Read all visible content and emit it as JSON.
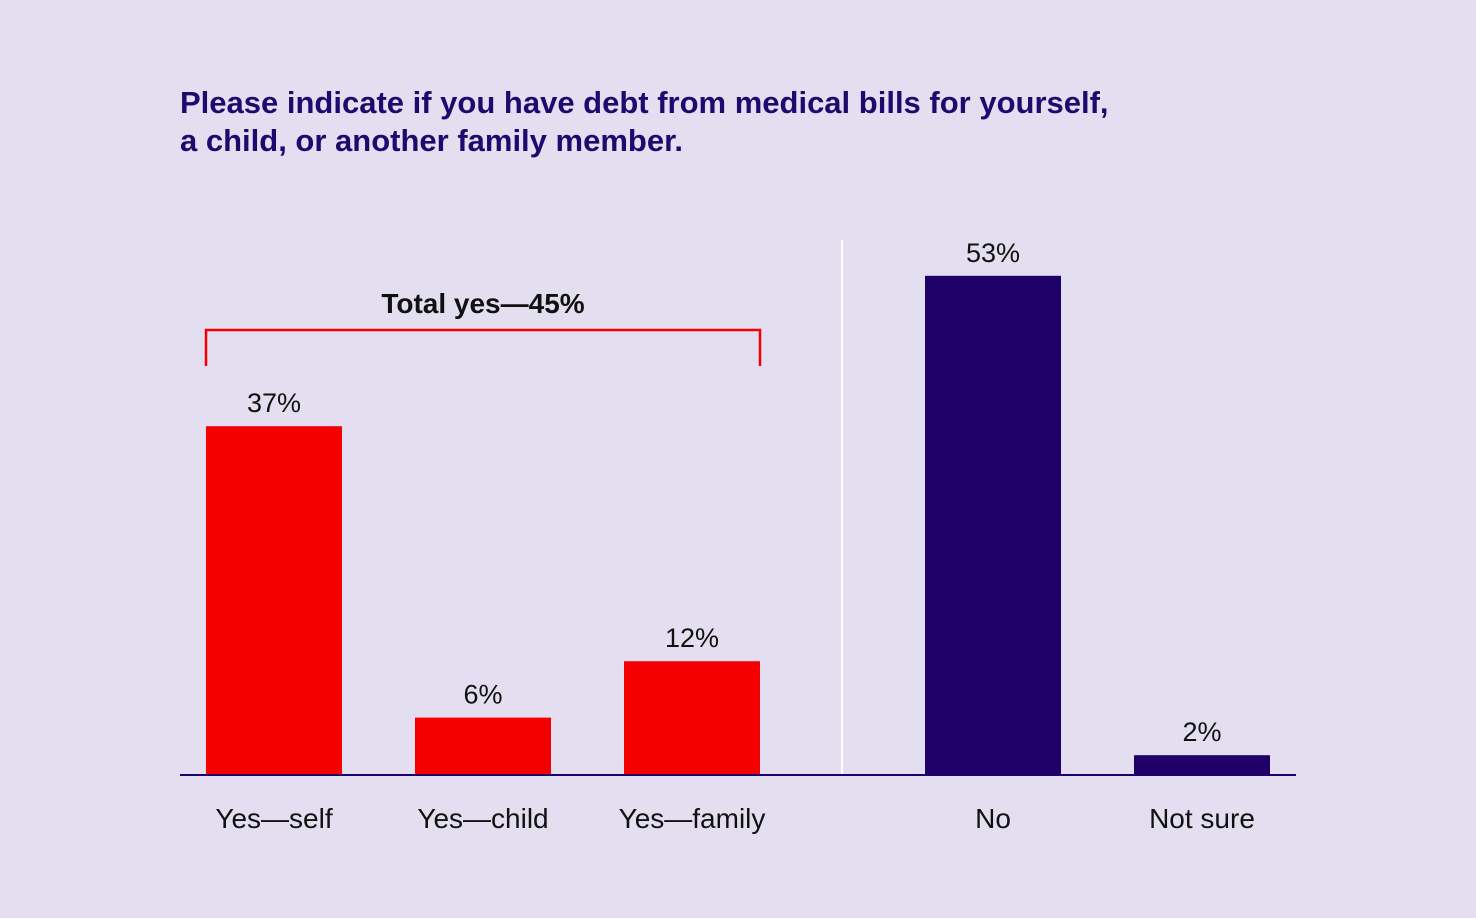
{
  "title_lines": [
    "Please indicate if you have debt from medical bills for yourself,",
    "a child, or another family member."
  ],
  "colors": {
    "background": "#e4dff0",
    "yes": "#f50000",
    "other": "#1e0068",
    "title": "#1e0a6e",
    "text": "#111111",
    "divider": "#ffffff"
  },
  "chart_data": {
    "type": "bar",
    "title": "Please indicate if you have debt from medical bills for yourself, a child, or another family member.",
    "categories": [
      "Yes—self",
      "Yes—child",
      "Yes—family",
      "No",
      "Not sure"
    ],
    "values": [
      37,
      6,
      12,
      53,
      2
    ],
    "value_labels": [
      "37%",
      "6%",
      "12%",
      "53%",
      "2%"
    ],
    "groups": [
      "yes",
      "yes",
      "yes",
      "other",
      "other"
    ],
    "ylim": [
      0,
      60
    ],
    "grid": false,
    "annotation": {
      "text": "Total yes—45%",
      "spans_categories": [
        0,
        2
      ],
      "value": 45
    }
  }
}
